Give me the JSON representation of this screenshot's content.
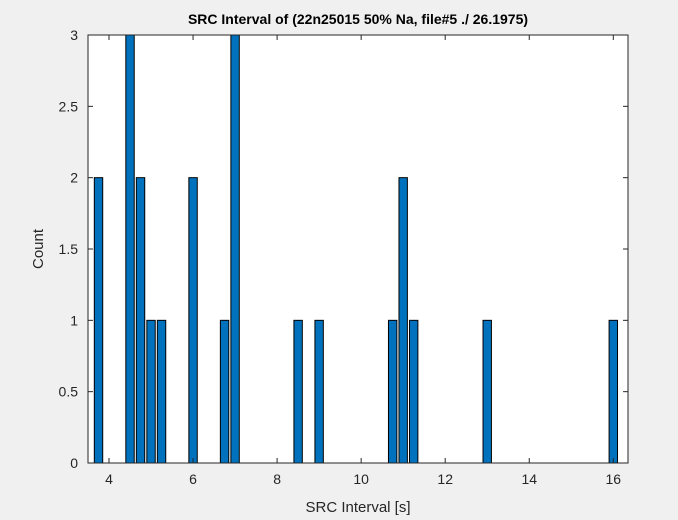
{
  "chart_data": {
    "type": "bar",
    "title": "SRC Interval of (22n25015 50% Na, file#5 ./ 26.1975)",
    "xlabel": "SRC Interval [s]",
    "ylabel": "Count",
    "xlim": [
      3.5,
      16.35
    ],
    "ylim": [
      0,
      3
    ],
    "xticks": [
      4,
      6,
      8,
      10,
      12,
      14,
      16
    ],
    "yticks": [
      0,
      0.5,
      1,
      1.5,
      2,
      2.5,
      3
    ],
    "xtick_labels": [
      "4",
      "6",
      "8",
      "10",
      "12",
      "14",
      "16"
    ],
    "ytick_labels": [
      "0",
      "0.5",
      "1",
      "1.5",
      "2",
      "2.5",
      "3"
    ],
    "bar_width": 0.2,
    "bar_color": "#0072bd",
    "x": [
      3.75,
      4.5,
      4.75,
      5.0,
      5.25,
      6.0,
      6.75,
      7.0,
      8.5,
      9.0,
      10.75,
      11.0,
      11.25,
      13.0,
      16.0
    ],
    "values": [
      2,
      3,
      2,
      1,
      1,
      2,
      1,
      3,
      1,
      1,
      1,
      2,
      1,
      1,
      1
    ],
    "grid": false
  }
}
